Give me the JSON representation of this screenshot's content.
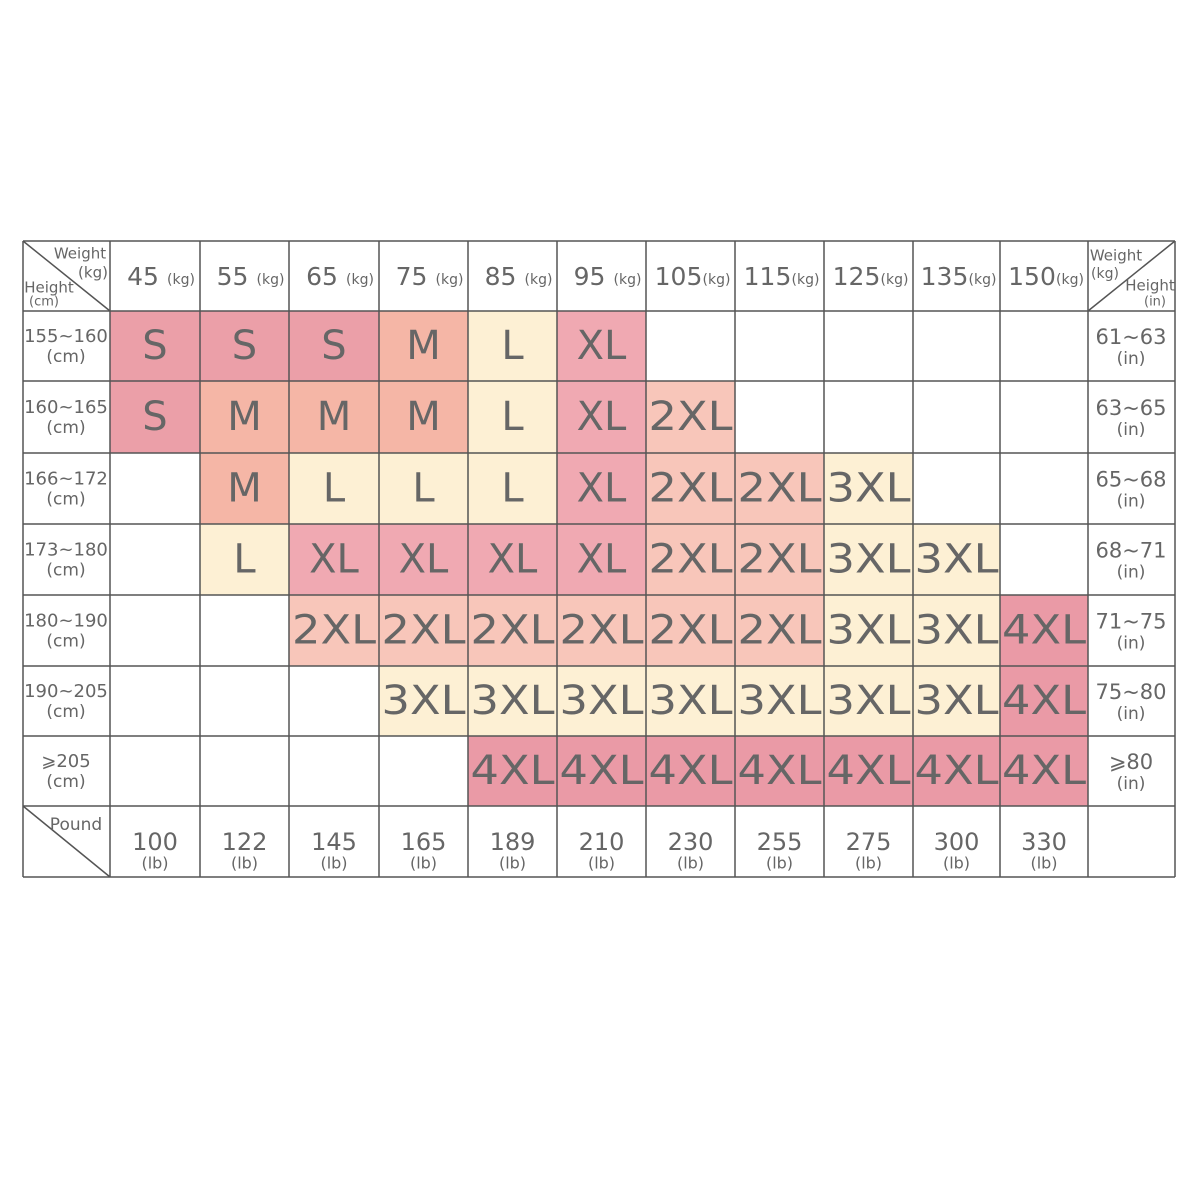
{
  "corner_left": {
    "weight": "Weight",
    "weight_unit": "(kg)",
    "height": "Height",
    "height_unit": "(cm)"
  },
  "corner_right": {
    "weight": "Weight",
    "weight_unit": "(kg)",
    "height": "Height",
    "height_unit": "(in)"
  },
  "pound_label": "Pound",
  "columns": [
    {
      "value": "45",
      "unit": "(kg)"
    },
    {
      "value": "55",
      "unit": "(kg)"
    },
    {
      "value": "65",
      "unit": "(kg)"
    },
    {
      "value": "75",
      "unit": "(kg)"
    },
    {
      "value": "85",
      "unit": "(kg)"
    },
    {
      "value": "95",
      "unit": "(kg)"
    },
    {
      "value": "105",
      "unit": "(kg)"
    },
    {
      "value": "115",
      "unit": "(kg)"
    },
    {
      "value": "125",
      "unit": "(kg)"
    },
    {
      "value": "135",
      "unit": "(kg)"
    },
    {
      "value": "150",
      "unit": "(kg)"
    }
  ],
  "pounds": [
    {
      "value": "100",
      "unit": "(lb)"
    },
    {
      "value": "122",
      "unit": "(lb)"
    },
    {
      "value": "145",
      "unit": "(lb)"
    },
    {
      "value": "165",
      "unit": "(lb)"
    },
    {
      "value": "189",
      "unit": "(lb)"
    },
    {
      "value": "210",
      "unit": "(lb)"
    },
    {
      "value": "230",
      "unit": "(lb)"
    },
    {
      "value": "255",
      "unit": "(lb)"
    },
    {
      "value": "275",
      "unit": "(lb)"
    },
    {
      "value": "300",
      "unit": "(lb)"
    },
    {
      "value": "330",
      "unit": "(lb)"
    }
  ],
  "rows": [
    {
      "cm": "155~160",
      "cm_unit": "(cm)",
      "inch": "61~63",
      "inch_unit": "(in)"
    },
    {
      "cm": "160~165",
      "cm_unit": "(cm)",
      "inch": "63~65",
      "inch_unit": "(in)"
    },
    {
      "cm": "166~172",
      "cm_unit": "(cm)",
      "inch": "65~68",
      "inch_unit": "(in)"
    },
    {
      "cm": "173~180",
      "cm_unit": "(cm)",
      "inch": "68~71",
      "inch_unit": "(in)"
    },
    {
      "cm": "180~190",
      "cm_unit": "(cm)",
      "inch": "71~75",
      "inch_unit": "(in)"
    },
    {
      "cm": "190~205",
      "cm_unit": "(cm)",
      "inch": "75~80",
      "inch_unit": "(in)"
    },
    {
      "cm": "⩾205",
      "cm_unit": "(cm)",
      "inch": "⩾80",
      "inch_unit": "(in)"
    }
  ],
  "sizes": [
    [
      "S",
      "S",
      "S",
      "M",
      "L",
      "XL",
      null,
      null,
      null,
      null,
      null
    ],
    [
      "S",
      "M",
      "M",
      "M",
      "L",
      "XL",
      "2XL",
      null,
      null,
      null,
      null
    ],
    [
      null,
      "M",
      "L",
      "L",
      "L",
      "XL",
      "2XL",
      "2XL",
      "3XL",
      null,
      null
    ],
    [
      null,
      "L",
      "XL",
      "XL",
      "XL",
      "XL",
      "2XL",
      "2XL",
      "3XL",
      "3XL",
      null
    ],
    [
      null,
      null,
      "2XL",
      "2XL",
      "2XL",
      "2XL",
      "2XL",
      "2XL",
      "3XL",
      "3XL",
      "4XL"
    ],
    [
      null,
      null,
      null,
      "3XL",
      "3XL",
      "3XL",
      "3XL",
      "3XL",
      "3XL",
      "3XL",
      "4XL"
    ],
    [
      null,
      null,
      null,
      null,
      "4XL",
      "4XL",
      "4XL",
      "4XL",
      "4XL",
      "4XL",
      "4XL"
    ]
  ],
  "size_colors": {
    "S": "#eb9fa8",
    "M": "#f5b6a6",
    "L": "#fdf0d4",
    "XL": "#f0a9b2",
    "2XL": "#f8c6ba",
    "3XL": "#fdf0d4",
    "4XL": "#ea9aa6"
  }
}
